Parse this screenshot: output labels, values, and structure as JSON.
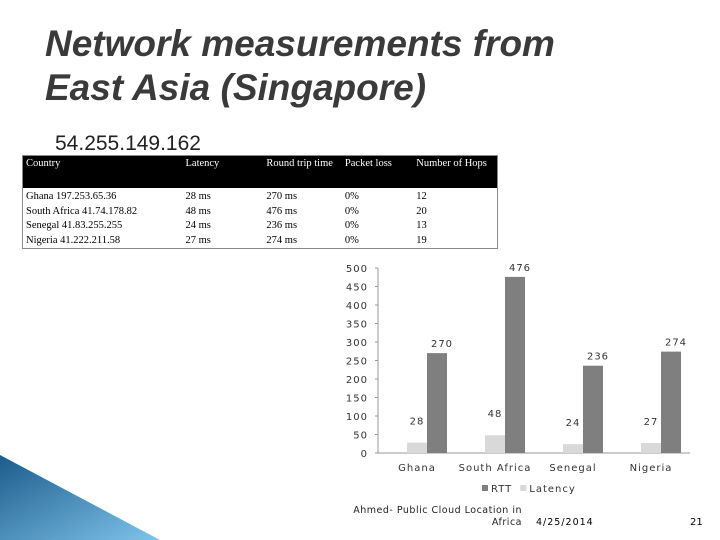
{
  "slide": {
    "title": "Network measurements from East Asia (Singapore)",
    "subtitle": "54.255.149.162",
    "footer": {
      "author": "Ahmed- Public Cloud Location in Africa",
      "date": "4/25/2014",
      "page": "21"
    }
  },
  "table": {
    "header": [
      "Country",
      "Latency",
      "Round trip time",
      "Packet loss",
      "Number of Hops"
    ],
    "rows": [
      [
        "Ghana 197.253.65.36",
        "28 ms",
        "270 ms",
        "0%",
        "12"
      ],
      [
        "South Africa 41.74.178.82",
        "48 ms",
        "476 ms",
        "0%",
        "20"
      ],
      [
        "Senegal 41.83.255.255",
        "24 ms",
        "236 ms",
        "0%",
        "13"
      ],
      [
        "Nigeria 41.222.211.58",
        "27 ms",
        "274 ms",
        "0%",
        "19"
      ]
    ]
  },
  "chart_data": {
    "type": "bar",
    "categories": [
      "Ghana",
      "South Africa",
      "Senegal",
      "Nigeria"
    ],
    "series": [
      {
        "name": "RTT",
        "color": "#7f7f7f",
        "values": [
          270,
          476,
          236,
          274
        ]
      },
      {
        "name": "Latency",
        "color": "#d9d9d9",
        "values": [
          28,
          48,
          24,
          27
        ]
      }
    ],
    "ylim": [
      0,
      500
    ],
    "yticks": [
      0,
      50,
      100,
      150,
      200,
      250,
      300,
      350,
      400,
      450,
      500
    ],
    "legend": "bottom"
  }
}
